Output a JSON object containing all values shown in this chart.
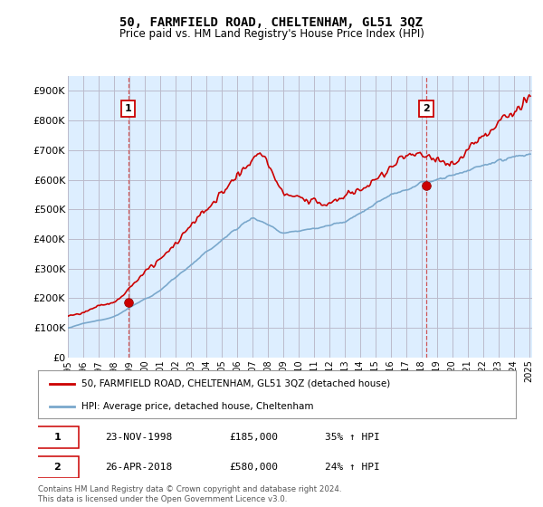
{
  "title": "50, FARMFIELD ROAD, CHELTENHAM, GL51 3QZ",
  "subtitle": "Price paid vs. HM Land Registry's House Price Index (HPI)",
  "ylabel_ticks": [
    "£0",
    "£100K",
    "£200K",
    "£300K",
    "£400K",
    "£500K",
    "£600K",
    "£700K",
    "£800K",
    "£900K"
  ],
  "ytick_values": [
    0,
    100000,
    200000,
    300000,
    400000,
    500000,
    600000,
    700000,
    800000,
    900000
  ],
  "ylim": [
    0,
    950000
  ],
  "xlim_start": 1995.0,
  "xlim_end": 2025.2,
  "purchase1_x": 1998.92,
  "purchase1_y": 185000,
  "purchase1_label": "1",
  "purchase1_date": "23-NOV-1998",
  "purchase1_price": "£185,000",
  "purchase1_hpi": "35% ↑ HPI",
  "purchase2_x": 2018.32,
  "purchase2_y": 580000,
  "purchase2_label": "2",
  "purchase2_date": "26-APR-2018",
  "purchase2_price": "£580,000",
  "purchase2_hpi": "24% ↑ HPI",
  "line_color_price": "#cc0000",
  "line_color_hpi": "#7aa8cc",
  "marker_color_price": "#cc0000",
  "bg_color": "#ffffff",
  "chart_bg_color": "#ddeeff",
  "grid_color": "#bbbbcc",
  "legend_label_price": "50, FARMFIELD ROAD, CHELTENHAM, GL51 3QZ (detached house)",
  "legend_label_hpi": "HPI: Average price, detached house, Cheltenham",
  "footer": "Contains HM Land Registry data © Crown copyright and database right 2024.\nThis data is licensed under the Open Government Licence v3.0.",
  "vline_color": "#cc4444",
  "purchase_box_color": "#cc0000"
}
